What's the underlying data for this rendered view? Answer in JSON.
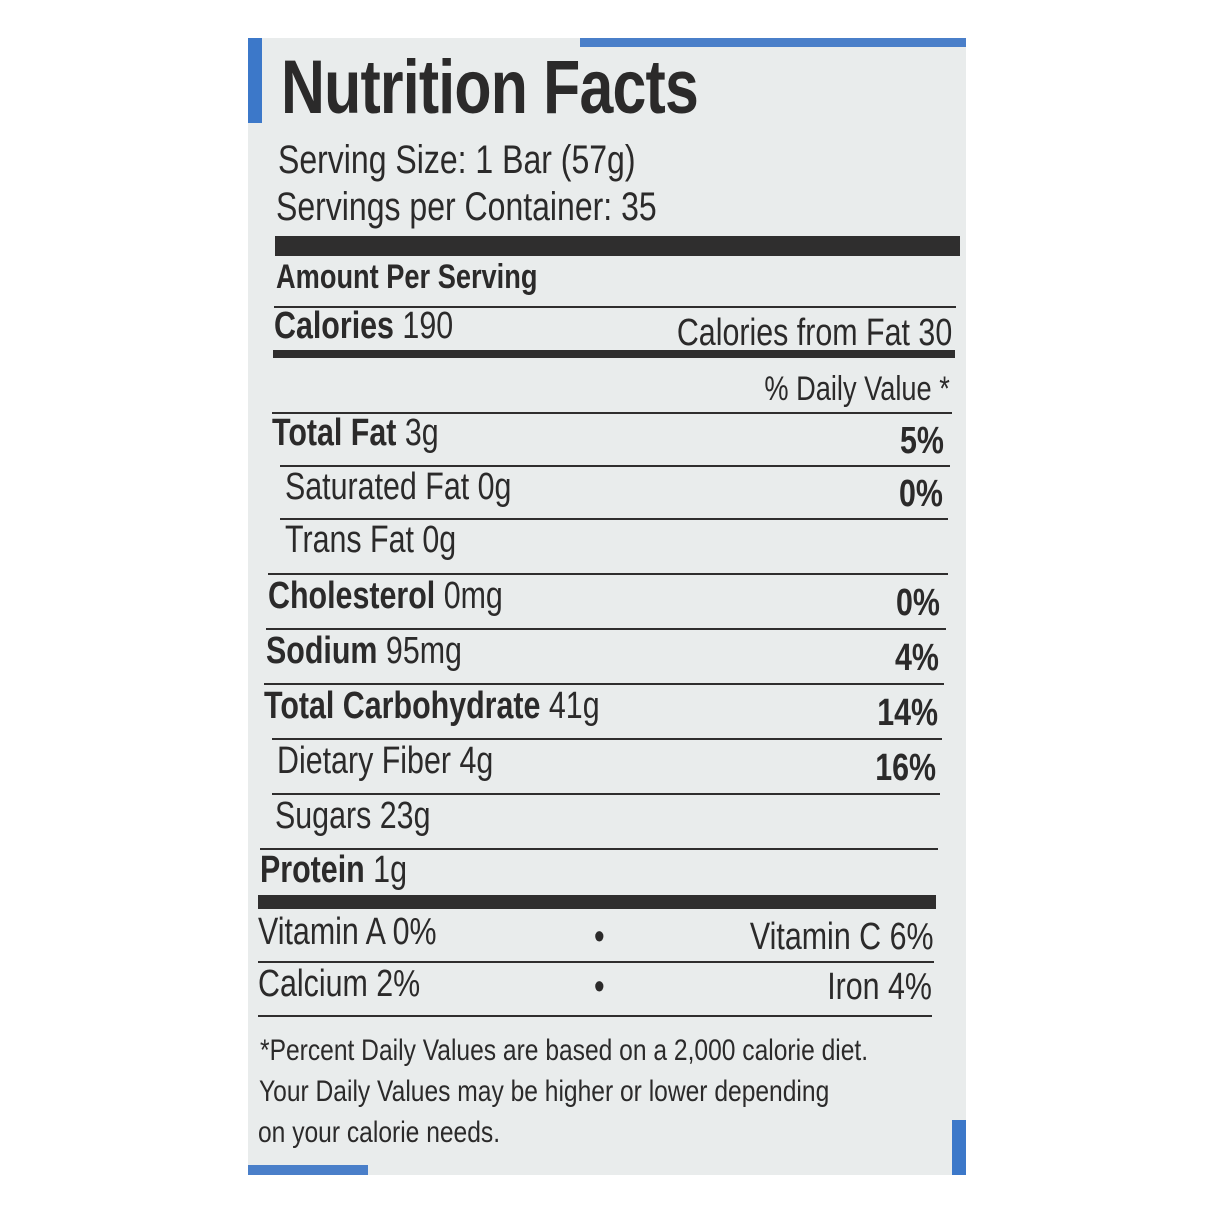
{
  "title": "Nutrition Facts",
  "serving_size": "Serving Size: 1 Bar (57g)",
  "servings_per_container": "Servings per Container: 35",
  "amount_per_serving": "Amount Per Serving",
  "calories": {
    "label": "Calories",
    "value": "190",
    "from_fat": "Calories from Fat 30"
  },
  "daily_value_header": "% Daily Value *",
  "nutrients": [
    {
      "label": "Total Fat",
      "amount": "3g",
      "dv": "5%"
    },
    {
      "label": "Saturated Fat",
      "amount": "0g",
      "dv": "0%"
    },
    {
      "label": "Trans Fat",
      "amount": "0g",
      "dv": ""
    },
    {
      "label": "Cholesterol",
      "amount": "0mg",
      "dv": "0%"
    },
    {
      "label": "Sodium",
      "amount": "95mg",
      "dv": "4%"
    },
    {
      "label": "Total Carbohydrate",
      "amount": "41g",
      "dv": "14%"
    },
    {
      "label": "Dietary Fiber",
      "amount": "4g",
      "dv": "16%"
    },
    {
      "label": "Sugars",
      "amount": "23g",
      "dv": ""
    },
    {
      "label": "Protein",
      "amount": "1g",
      "dv": ""
    }
  ],
  "vitamins": [
    {
      "left": "Vitamin A 0%",
      "bullet": "•",
      "right": "Vitamin C 6%"
    },
    {
      "left": "Calcium 2%",
      "bullet": "•",
      "right": "Iron 4%"
    }
  ],
  "footnote": [
    "*Percent Daily Values are based on a 2,000 calorie diet.",
    "Your Daily Values may be higher or lower depending",
    "on your calorie needs."
  ],
  "colors": {
    "label_bg": "#e9ecec",
    "text": "#2b2a2a",
    "package_blue": "#3c78c9"
  }
}
